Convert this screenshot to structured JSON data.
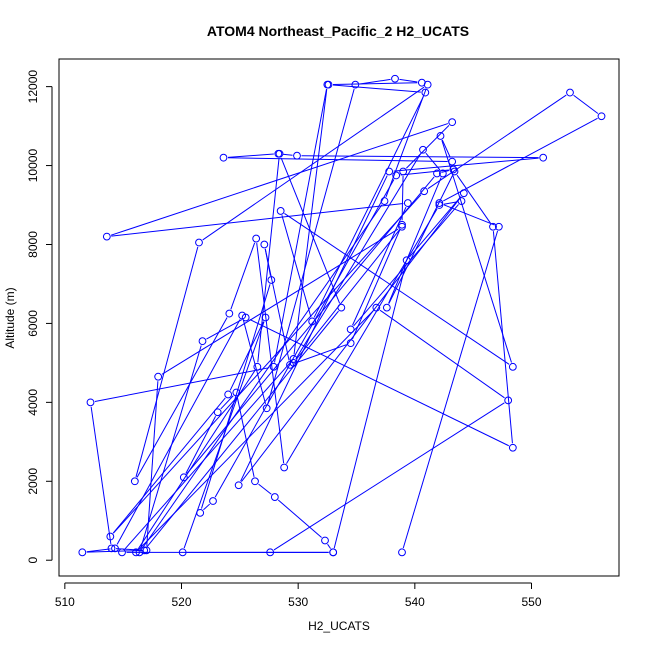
{
  "chart_data": {
    "type": "line",
    "title": "ATOM4 Northeast_Pacific_2 H2_UCATS",
    "xlabel": "H2_UCATS",
    "ylabel": "Altitude (m)",
    "xlim": [
      509.5,
      557.5
    ],
    "ylim": [
      -400,
      12700
    ],
    "xticks": [
      510,
      520,
      530,
      540,
      550
    ],
    "yticks": [
      0,
      2000,
      4000,
      6000,
      8000,
      10000,
      12000
    ],
    "line_color": "#0000ff",
    "marker": "open-circle",
    "grid": false,
    "legend": "none",
    "series": [
      {
        "x": [
          527.6,
          548.0,
          536.7,
          516.1,
          526.5,
          528.4,
          533.7,
          516.8,
          514.0,
          512.2,
          527.9,
          532.5,
          529.6,
          514.9,
          533.0,
          539.3,
          544.2,
          524.9,
          537.8,
          551.0,
          529.9,
          528.3,
          523.6,
          543.2,
          542.2,
          548.4,
          528.5,
          531.2,
          540.9,
          532.6,
          540.6,
          538.3,
          534.9,
          527.3,
          525.2,
          514.3,
          511.5,
          517.0,
          518.0,
          538.9,
          529.6,
          540.7,
          542.4,
          537.6,
          543.4,
          546.7,
          548.4,
          525.5,
          521.8,
          516.4,
          537.4,
          541.1,
          521.5,
          516.0,
          524.1,
          526.4,
          528.8,
          542.1,
          544.0,
          534.5,
          539.4,
          513.6,
          543.2,
          539.0,
          538.9,
          534.5,
          529.3,
          527.1,
          527.7,
          521.6,
          522.7,
          538.4,
          543.3,
          541.9,
          520.2,
          523.1,
          524.7,
          526.3,
          528.0,
          532.3,
          533.0,
          520.1,
          527.2,
          524.0,
          513.9,
          540.8,
          553.3,
          556.0,
          542.1,
          547.2,
          538.9
        ],
        "y": [
          200,
          4050,
          6400,
          200,
          4900,
          10300,
          6400,
          250,
          300,
          4000,
          4900,
          12050,
          5100,
          200,
          200,
          7600,
          9300,
          1900,
          9850,
          10200,
          10250,
          10300,
          10200,
          10100,
          10750,
          4900,
          8850,
          6050,
          11850,
          12050,
          12100,
          12200,
          12050,
          3850,
          6200,
          300,
          200,
          250,
          4650,
          8450,
          5000,
          10400,
          9800,
          6400,
          9850,
          8450,
          2850,
          6150,
          5550,
          200,
          9100,
          12050,
          8050,
          2000,
          6250,
          8150,
          2350,
          9000,
          9100,
          5850,
          9050,
          8200,
          11100,
          9850,
          8500,
          5500,
          4950,
          8000,
          7100,
          1200,
          1500,
          9750,
          9900,
          9800,
          2100,
          3750,
          4250,
          2000,
          1600,
          500,
          200,
          200,
          6150,
          4200,
          600,
          9350,
          11850,
          11250,
          9050,
          8450,
          200
        ]
      }
    ]
  }
}
